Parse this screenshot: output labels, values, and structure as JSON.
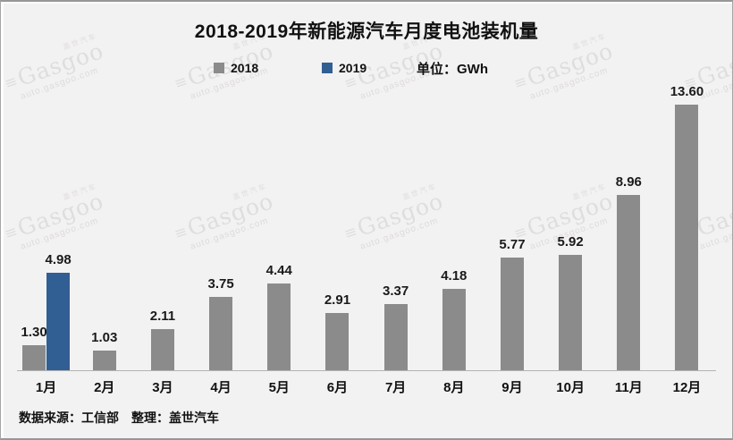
{
  "page": {
    "background": "#f2f2f2"
  },
  "header": {
    "title": "2018-2019年新能源汽车月度电池装机量"
  },
  "legend": {
    "unit_label": "单位：GWh"
  },
  "chart_data": {
    "type": "bar",
    "title": "2018-2019年新能源汽车月度电池装机量",
    "unit": "GWh",
    "categories": [
      "1月",
      "2月",
      "3月",
      "4月",
      "5月",
      "6月",
      "7月",
      "8月",
      "9月",
      "10月",
      "11月",
      "12月"
    ],
    "series": [
      {
        "name": "2018",
        "color": "#8b8b8b",
        "values": [
          1.3,
          1.03,
          2.11,
          3.75,
          4.44,
          2.91,
          3.37,
          4.18,
          5.77,
          5.92,
          8.96,
          13.6
        ]
      },
      {
        "name": "2019",
        "color": "#325f93",
        "values": [
          4.98,
          null,
          null,
          null,
          null,
          null,
          null,
          null,
          null,
          null,
          null,
          null
        ]
      }
    ],
    "ylim": [
      0,
      14.4
    ],
    "value_labels": true,
    "value_label_decimals": 2,
    "legend_position": "top",
    "grid": false,
    "axis_line_color": "#b3b3b3"
  },
  "watermark": {
    "brand_cn": "盖世汽车",
    "brand": "Gasgoo",
    "url": "auto.gasgoo.com"
  },
  "footer": {
    "source": "数据来源：工信部",
    "editor": "整理：盖世汽车"
  }
}
